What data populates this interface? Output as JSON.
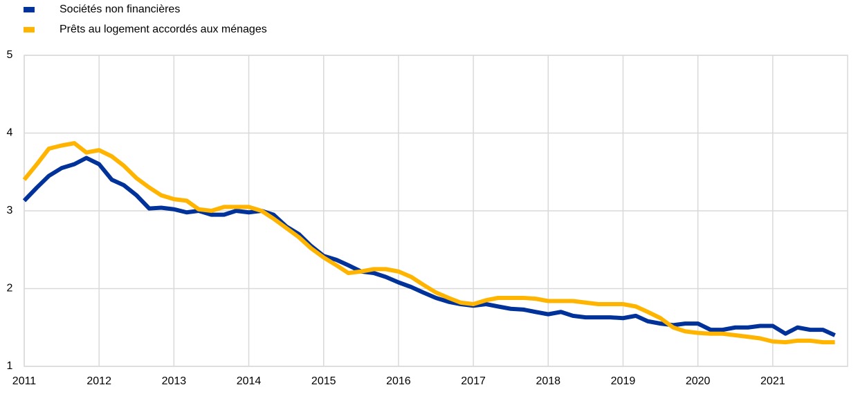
{
  "chart_data": {
    "type": "line",
    "x": [
      2011,
      2011.17,
      2011.33,
      2011.5,
      2011.67,
      2011.83,
      2012,
      2012.17,
      2012.33,
      2012.5,
      2012.67,
      2012.83,
      2013,
      2013.17,
      2013.33,
      2013.5,
      2013.67,
      2013.83,
      2014,
      2014.17,
      2014.33,
      2014.5,
      2014.67,
      2014.83,
      2015,
      2015.17,
      2015.33,
      2015.5,
      2015.67,
      2015.83,
      2016,
      2016.17,
      2016.33,
      2016.5,
      2016.67,
      2016.83,
      2017,
      2017.17,
      2017.33,
      2017.5,
      2017.67,
      2017.83,
      2018,
      2018.17,
      2018.33,
      2018.5,
      2018.67,
      2018.83,
      2019,
      2019.17,
      2019.33,
      2019.5,
      2019.67,
      2019.83,
      2020,
      2020.17,
      2020.33,
      2020.5,
      2020.67,
      2020.83,
      2021,
      2021.17,
      2021.33,
      2021.5,
      2021.67,
      2021.83
    ],
    "series": [
      {
        "name": "Sociétés non financières",
        "color": "#003299",
        "values": [
          3.13,
          3.3,
          3.45,
          3.55,
          3.6,
          3.68,
          3.6,
          3.4,
          3.33,
          3.2,
          3.03,
          3.04,
          3.02,
          2.98,
          3.0,
          2.95,
          2.95,
          3.0,
          2.98,
          3.0,
          2.95,
          2.8,
          2.7,
          2.55,
          2.42,
          2.37,
          2.3,
          2.22,
          2.2,
          2.15,
          2.08,
          2.02,
          1.95,
          1.88,
          1.83,
          1.8,
          1.78,
          1.8,
          1.77,
          1.74,
          1.73,
          1.7,
          1.67,
          1.7,
          1.65,
          1.63,
          1.63,
          1.63,
          1.62,
          1.65,
          1.58,
          1.55,
          1.53,
          1.55,
          1.55,
          1.47,
          1.47,
          1.5,
          1.5,
          1.52,
          1.52,
          1.42,
          1.5,
          1.47,
          1.47,
          1.4
        ]
      },
      {
        "name": "Prêts au logement accordés aux ménages",
        "color": "#ffb400",
        "values": [
          3.4,
          3.6,
          3.8,
          3.84,
          3.87,
          3.75,
          3.78,
          3.7,
          3.58,
          3.42,
          3.3,
          3.2,
          3.15,
          3.13,
          3.02,
          3.0,
          3.05,
          3.05,
          3.05,
          3.0,
          2.9,
          2.78,
          2.66,
          2.52,
          2.4,
          2.3,
          2.2,
          2.22,
          2.25,
          2.25,
          2.22,
          2.15,
          2.05,
          1.95,
          1.88,
          1.82,
          1.8,
          1.85,
          1.88,
          1.88,
          1.88,
          1.87,
          1.84,
          1.84,
          1.84,
          1.82,
          1.8,
          1.8,
          1.8,
          1.77,
          1.7,
          1.62,
          1.5,
          1.45,
          1.43,
          1.42,
          1.42,
          1.4,
          1.38,
          1.36,
          1.32,
          1.31,
          1.33,
          1.33,
          1.31,
          1.31
        ]
      }
    ],
    "xlim": [
      2011,
      2022
    ],
    "xticks": [
      2011,
      2012,
      2013,
      2014,
      2015,
      2016,
      2017,
      2018,
      2019,
      2020,
      2021
    ],
    "ylim": [
      1,
      5
    ],
    "yticks": [
      1,
      2,
      3,
      4,
      5
    ],
    "grid": true
  }
}
